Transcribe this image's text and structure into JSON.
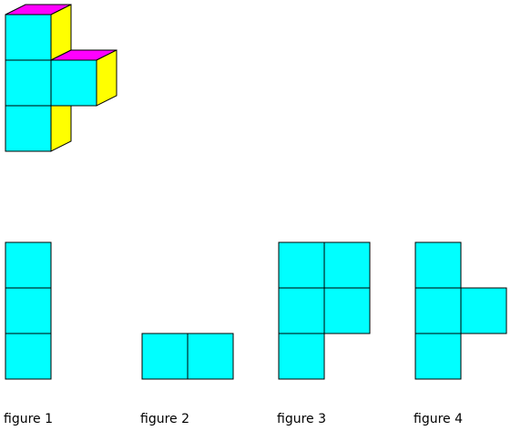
{
  "colors": {
    "front": "#00ffff",
    "top": "#ff00ff",
    "side": "#ffff00",
    "edge": "#000000",
    "background": "#ffffff"
  },
  "solid": {
    "description_cubes": [
      {
        "col": 0,
        "row": 0
      },
      {
        "col": 0,
        "row": 1
      },
      {
        "col": 1,
        "row": 1
      },
      {
        "col": 0,
        "row": 2
      }
    ]
  },
  "figures": [
    {
      "label": "figure 1",
      "cells": [
        {
          "col": 0,
          "row": 0
        },
        {
          "col": 0,
          "row": 1
        },
        {
          "col": 0,
          "row": 2
        }
      ]
    },
    {
      "label": "figure 2",
      "cells": [
        {
          "col": 0,
          "row": 2
        },
        {
          "col": 1,
          "row": 2
        }
      ]
    },
    {
      "label": "figure 3",
      "cells": [
        {
          "col": 0,
          "row": 0
        },
        {
          "col": 1,
          "row": 0
        },
        {
          "col": 0,
          "row": 1
        },
        {
          "col": 1,
          "row": 1
        },
        {
          "col": 0,
          "row": 2
        }
      ]
    },
    {
      "label": "figure 4",
      "cells": [
        {
          "col": 0,
          "row": 0
        },
        {
          "col": 0,
          "row": 1
        },
        {
          "col": 1,
          "row": 1
        },
        {
          "col": 0,
          "row": 2
        }
      ]
    }
  ]
}
